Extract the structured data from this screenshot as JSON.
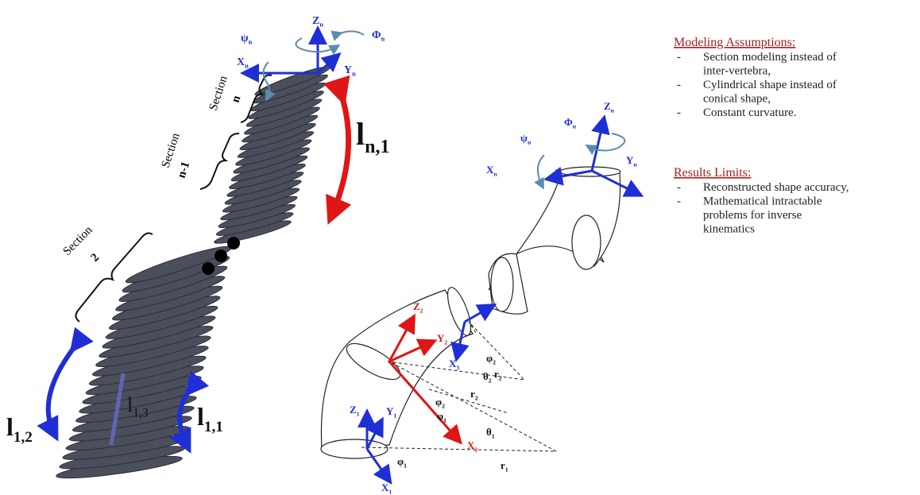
{
  "left_diagram": {
    "section_labels": [
      {
        "word": "Section",
        "number": "n"
      },
      {
        "word": "Section",
        "number": "n-1"
      },
      {
        "word": "Section",
        "number": "2"
      }
    ],
    "frame_labels": [
      {
        "main": "Z",
        "sub": "n"
      },
      {
        "main": "Y",
        "sub": "n"
      },
      {
        "main": "X",
        "sub": "n"
      },
      {
        "main": "ψ",
        "sub": "n"
      },
      {
        "main": "Φ",
        "sub": "n"
      }
    ],
    "length_labels": [
      {
        "main": "l",
        "sub": "n,1"
      },
      {
        "main": "l",
        "sub": "1,2"
      },
      {
        "main": "l",
        "sub": "1,3"
      },
      {
        "main": "l",
        "sub": "1,1"
      }
    ]
  },
  "right_diagram": {
    "labels": [
      {
        "main": "Z",
        "sub": "n"
      },
      {
        "main": "Φ",
        "sub": "n"
      },
      {
        "main": "ψ",
        "sub": "n"
      },
      {
        "main": "X",
        "sub": "n"
      },
      {
        "main": "Y",
        "sub": "n"
      },
      {
        "main": "Z",
        "sub": "2"
      },
      {
        "main": "Y",
        "sub": "2"
      },
      {
        "main": "X",
        "sub": "2"
      },
      {
        "main": "X",
        "sub": "3"
      },
      {
        "main": "φ",
        "sub": "2"
      },
      {
        "main": "θ",
        "sub": "2"
      },
      {
        "main": "r",
        "sub": "2"
      },
      {
        "main": "r",
        "sub": "2"
      },
      {
        "main": "φ",
        "sub": "2"
      },
      {
        "main": "φ",
        "sub": "1"
      },
      {
        "main": "θ",
        "sub": "1"
      },
      {
        "main": "r",
        "sub": "1"
      },
      {
        "main": "Z",
        "sub": "1"
      },
      {
        "main": "Y",
        "sub": "1"
      },
      {
        "main": "X",
        "sub": "1"
      },
      {
        "main": "φ",
        "sub": "1"
      }
    ]
  },
  "notes": {
    "assumptions_title": "Modeling Assumptions:",
    "assumptions": [
      {
        "marker": "-",
        "lines": [
          "Section modeling  instead of",
          "inter-vertebra,"
        ]
      },
      {
        "marker": "-",
        "lines": [
          "Cylindrical shape instead of",
          "conical shape,"
        ]
      },
      {
        "marker": "-",
        "lines": [
          "Constant curvature."
        ]
      }
    ],
    "limits_title": "Results Limits:",
    "limits": [
      {
        "marker": "-",
        "lines": [
          "Reconstructed shape accuracy,"
        ]
      },
      {
        "marker": "-",
        "lines": [
          "Mathematical intractable",
          "problems for inverse",
          "kinematics"
        ]
      }
    ]
  }
}
